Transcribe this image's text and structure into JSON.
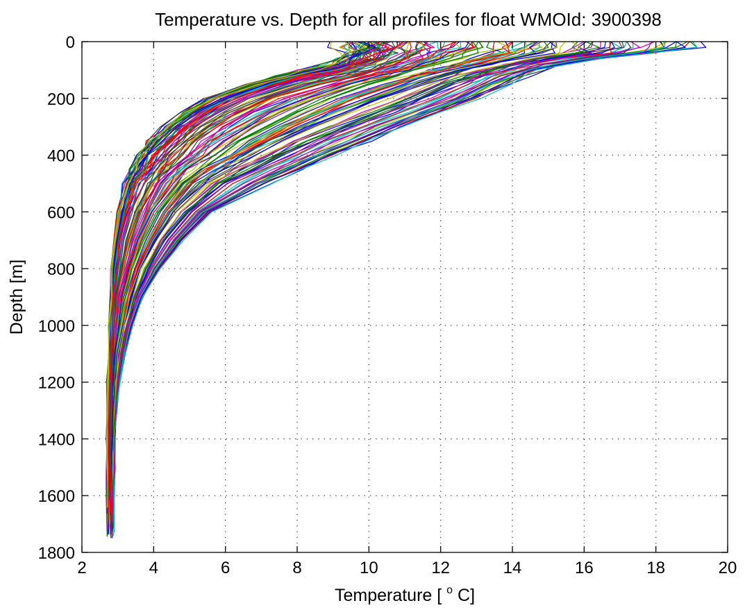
{
  "chart_data": {
    "type": "line",
    "title": "Temperature vs. Depth for all profiles for float WMOId: 3900398",
    "xlabel_text": "Temperature [",
    "xlabel_sup": "o",
    "xlabel_end": "C]",
    "ylabel": "Depth [m]",
    "xlim": [
      2,
      20
    ],
    "ylim": [
      0,
      1800
    ],
    "y_reversed": true,
    "grid": true,
    "legend": "none",
    "x_ticks": [
      2,
      4,
      6,
      8,
      10,
      12,
      14,
      16,
      18,
      20
    ],
    "y_ticks": [
      0,
      200,
      400,
      600,
      800,
      1000,
      1200,
      1400,
      1600,
      1800
    ],
    "x_tick_labels": [
      "2",
      "4",
      "6",
      "8",
      "10",
      "12",
      "14",
      "16",
      "18",
      "20"
    ],
    "y_tick_labels": [
      "0",
      "200",
      "400",
      "600",
      "800",
      "1000",
      "1200",
      "1400",
      "1600",
      "1800"
    ],
    "series_colors": [
      "#0000ff",
      "#008000",
      "#ff0000",
      "#00bfbf",
      "#bf00bf",
      "#bfbf00",
      "#404040"
    ],
    "profile_count": 140,
    "depth_levels": [
      0,
      20,
      40,
      60,
      80,
      100,
      120,
      150,
      200,
      250,
      300,
      350,
      400,
      450,
      500,
      600,
      700,
      800,
      900,
      1000,
      1100,
      1200,
      1300,
      1400,
      1500,
      1600,
      1700
    ],
    "series": [
      {
        "temperature": [
          9.5,
          9.5,
          9.4,
          9.2,
          8.8,
          8.2,
          7.5,
          6.6,
          5.5,
          4.8,
          4.3,
          3.9,
          3.6,
          3.4,
          3.2,
          3.0,
          2.9,
          2.8,
          2.8,
          2.75,
          2.75,
          2.7,
          2.7,
          2.7,
          2.7,
          2.7,
          2.7
        ]
      },
      {
        "temperature": [
          10.5,
          10.5,
          10.4,
          10.2,
          9.8,
          9.3,
          8.6,
          7.7,
          6.5,
          5.6,
          5.0,
          4.6,
          4.2,
          3.9,
          3.6,
          3.3,
          3.1,
          3.0,
          2.9,
          2.85,
          2.8,
          2.8,
          2.75,
          2.75,
          2.75,
          2.75,
          2.75
        ]
      },
      {
        "temperature": [
          11.5,
          11.5,
          11.4,
          11.2,
          10.8,
          10.3,
          9.7,
          8.8,
          7.5,
          6.6,
          5.9,
          5.3,
          4.9,
          4.5,
          4.1,
          3.7,
          3.4,
          3.2,
          3.0,
          2.95,
          2.9,
          2.85,
          2.8,
          2.8,
          2.8,
          2.8,
          2.8
        ]
      },
      {
        "temperature": [
          13.0,
          13.0,
          12.8,
          12.4,
          11.9,
          11.3,
          10.7,
          9.9,
          8.8,
          7.9,
          7.1,
          6.4,
          5.8,
          5.2,
          4.7,
          4.1,
          3.7,
          3.4,
          3.2,
          3.05,
          2.95,
          2.9,
          2.85,
          2.85,
          2.8,
          2.8,
          2.8
        ]
      },
      {
        "temperature": [
          15.0,
          15.0,
          14.8,
          14.0,
          13.2,
          12.6,
          12.0,
          11.3,
          10.2,
          9.2,
          8.3,
          7.4,
          6.6,
          5.9,
          5.3,
          4.5,
          4.0,
          3.6,
          3.35,
          3.15,
          3.0,
          2.95,
          2.9,
          2.85,
          2.85,
          2.85,
          2.85
        ]
      },
      {
        "temperature": [
          17.0,
          17.0,
          16.5,
          15.2,
          14.3,
          13.7,
          13.2,
          12.6,
          11.7,
          10.7,
          9.7,
          8.7,
          7.8,
          7.0,
          6.2,
          5.1,
          4.4,
          3.9,
          3.55,
          3.3,
          3.1,
          3.0,
          2.95,
          2.9,
          2.9,
          2.85,
          2.85
        ]
      },
      {
        "temperature": [
          18.9,
          18.9,
          18.0,
          16.5,
          15.5,
          14.9,
          14.4,
          13.9,
          13.0,
          12.0,
          11.0,
          10.0,
          9.0,
          8.1,
          7.2,
          5.6,
          4.8,
          4.2,
          3.7,
          3.4,
          3.2,
          3.05,
          2.95,
          2.9,
          2.9,
          2.9,
          2.9
        ]
      }
    ]
  }
}
